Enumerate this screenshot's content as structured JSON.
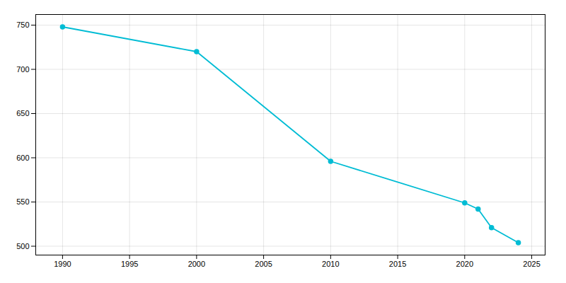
{
  "chart_data": {
    "type": "line",
    "x": [
      1990,
      2000,
      2010,
      2020,
      2021,
      2022,
      2024
    ],
    "values": [
      748,
      720,
      596,
      549,
      542,
      521,
      504
    ],
    "color": "#00BCD4",
    "marker": "circle",
    "xlim": [
      1988,
      2026
    ],
    "ylim": [
      490,
      762
    ],
    "xticks": [
      1990,
      1995,
      2000,
      2005,
      2010,
      2015,
      2020,
      2025
    ],
    "yticks": [
      500,
      550,
      600,
      650,
      700,
      750
    ],
    "grid": true
  }
}
